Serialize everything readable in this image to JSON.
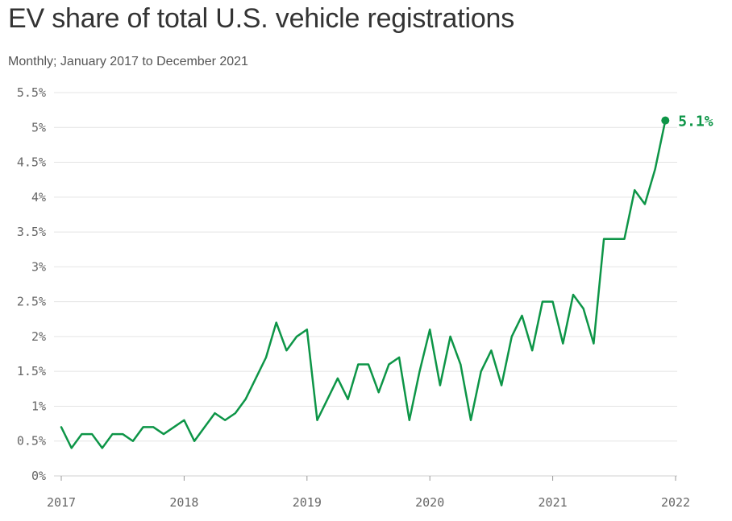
{
  "title": "EV share of total U.S. vehicle registrations",
  "subtitle": "Monthly; January 2017 to December 2021",
  "colors": {
    "line": "#0d9547",
    "grid": "#e4e4e4",
    "axis": "#d0d0d0",
    "tick_text": "#666666"
  },
  "chart_data": {
    "type": "line",
    "title": "EV share of total U.S. vehicle registrations",
    "subtitle": "Monthly; January 2017 to December 2021",
    "xlabel": "",
    "ylabel": "",
    "ylim": [
      0,
      5.5
    ],
    "xlim": [
      2017,
      2022
    ],
    "y_ticks": [
      0,
      0.5,
      1,
      1.5,
      2,
      2.5,
      3,
      3.5,
      4,
      4.5,
      5,
      5.5
    ],
    "y_tick_labels": [
      "0%",
      "0.5%",
      "1%",
      "1.5%",
      "2%",
      "2.5%",
      "3%",
      "3.5%",
      "4%",
      "4.5%",
      "5%",
      "5.5%"
    ],
    "x_ticks": [
      2017,
      2018,
      2019,
      2020,
      2021,
      2022
    ],
    "x_tick_labels": [
      "2017",
      "2018",
      "2019",
      "2020",
      "2021",
      "2022"
    ],
    "grid": true,
    "legend": "none",
    "series": [
      {
        "color": "#0d9547",
        "dates": [
          "2017-01",
          "2017-02",
          "2017-03",
          "2017-04",
          "2017-05",
          "2017-06",
          "2017-07",
          "2017-08",
          "2017-09",
          "2017-10",
          "2017-11",
          "2017-12",
          "2018-01",
          "2018-02",
          "2018-03",
          "2018-04",
          "2018-05",
          "2018-06",
          "2018-07",
          "2018-08",
          "2018-09",
          "2018-10",
          "2018-11",
          "2018-12",
          "2019-01",
          "2019-02",
          "2019-03",
          "2019-04",
          "2019-05",
          "2019-06",
          "2019-07",
          "2019-08",
          "2019-09",
          "2019-10",
          "2019-11",
          "2019-12",
          "2020-01",
          "2020-02",
          "2020-03",
          "2020-04",
          "2020-05",
          "2020-06",
          "2020-07",
          "2020-08",
          "2020-09",
          "2020-10",
          "2020-11",
          "2020-12",
          "2021-01",
          "2021-02",
          "2021-03",
          "2021-04",
          "2021-05",
          "2021-06",
          "2021-07",
          "2021-08",
          "2021-09",
          "2021-10",
          "2021-11",
          "2021-12"
        ],
        "values": [
          0.7,
          0.4,
          0.6,
          0.6,
          0.4,
          0.6,
          0.6,
          0.5,
          0.7,
          0.7,
          0.6,
          0.7,
          0.8,
          0.5,
          0.7,
          0.9,
          0.8,
          0.9,
          1.1,
          1.4,
          1.7,
          2.2,
          1.8,
          2.0,
          2.1,
          0.8,
          1.1,
          1.4,
          1.1,
          1.6,
          1.6,
          1.2,
          1.6,
          1.7,
          0.8,
          1.5,
          2.1,
          1.3,
          2.0,
          1.6,
          0.8,
          1.5,
          1.8,
          1.3,
          2.0,
          2.3,
          1.8,
          2.5,
          2.5,
          1.9,
          2.6,
          2.4,
          1.9,
          3.4,
          3.4,
          3.4,
          4.1,
          3.9,
          4.4,
          5.1
        ]
      }
    ],
    "end_annotation": {
      "date": "2021-12",
      "value": 5.1,
      "label": "5.1%"
    }
  }
}
